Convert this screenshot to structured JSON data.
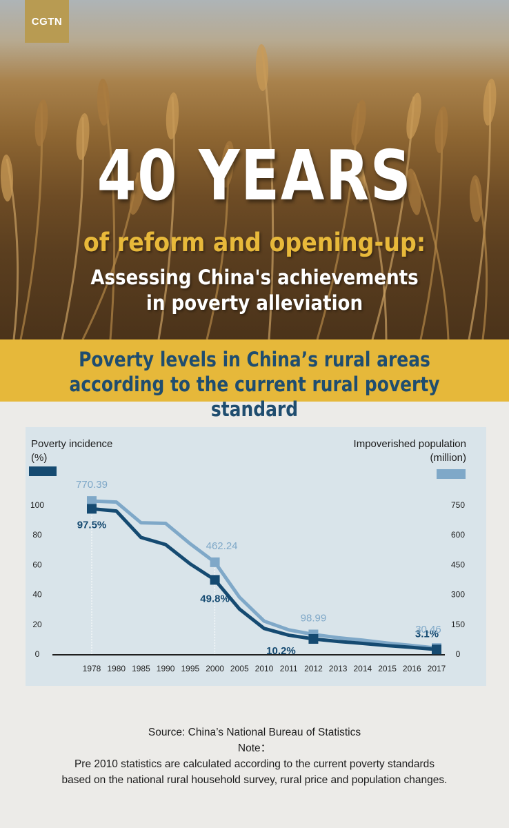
{
  "header": {
    "logo": "CGTN",
    "title": "40 YEARS",
    "subtitle_line1": "of reform and opening-up:",
    "subtitle_line2": "Assessing China's achievements",
    "subtitle_line3": "in poverty alleviation"
  },
  "band": {
    "line1": "Poverty levels in China’s rural areas",
    "line2": "according to the current rural poverty standard"
  },
  "legend": {
    "left_label": "Poverty incidence",
    "left_unit": "(%)",
    "right_label": "Impoverished population",
    "right_unit": "(million)"
  },
  "colors": {
    "incidence": "#154a71",
    "population": "#7fa8c8",
    "panel": "#d9e4ea",
    "band": "#e6b83a"
  },
  "chart_data": {
    "type": "line",
    "categories": [
      "1978",
      "1980",
      "1985",
      "1990",
      "1995",
      "2000",
      "2005",
      "2010",
      "2011",
      "2012",
      "2013",
      "2014",
      "2015",
      "2016",
      "2017"
    ],
    "x_label_text": [
      "1978",
      "1980",
      "1985",
      "1990",
      "1995",
      "2000",
      "2005",
      "2010",
      "2011",
      "2012",
      "2013",
      "2014",
      "2015",
      "2016",
      "2017"
    ],
    "series": [
      {
        "name": "Poverty incidence",
        "axis": "left",
        "unit": "%",
        "values": [
          97.5,
          96,
          78.3,
          73.5,
          60.5,
          49.8,
          30.2,
          17.2,
          12.7,
          10.2,
          8.5,
          7.2,
          5.7,
          4.5,
          3.1
        ]
      },
      {
        "name": "Impoverished population",
        "axis": "right",
        "unit": "million",
        "values": [
          770.39,
          765,
          661,
          658,
          555,
          462.24,
          286,
          166,
          122,
          98.99,
          82.5,
          70.2,
          55.8,
          43.4,
          30.46
        ]
      }
    ],
    "y_left_ticks": [
      0,
      20,
      40,
      60,
      80,
      100
    ],
    "y_right_ticks": [
      0,
      150,
      300,
      450,
      600,
      750
    ],
    "ylim_left": [
      0,
      100
    ],
    "ylim_right": [
      0,
      750
    ],
    "annotations": [
      {
        "series": 0,
        "index": 0,
        "text": "97.5%"
      },
      {
        "series": 0,
        "index": 5,
        "text": "49.8%"
      },
      {
        "series": 0,
        "index": 9,
        "text": "10.2%"
      },
      {
        "series": 0,
        "index": 14,
        "text": "3.1%"
      },
      {
        "series": 1,
        "index": 0,
        "text": "770.39"
      },
      {
        "series": 1,
        "index": 5,
        "text": "462.24"
      },
      {
        "series": 1,
        "index": 9,
        "text": "98.99"
      },
      {
        "series": 1,
        "index": 14,
        "text": "30.46"
      }
    ]
  },
  "footer": {
    "source": "Source: China’s National Bureau of Statistics",
    "note_label": "Note：",
    "note_line1": "Pre 2010 statistics are calculated according to the current poverty standards",
    "note_line2": "based on the national rural household survey, rural price and population changes."
  }
}
